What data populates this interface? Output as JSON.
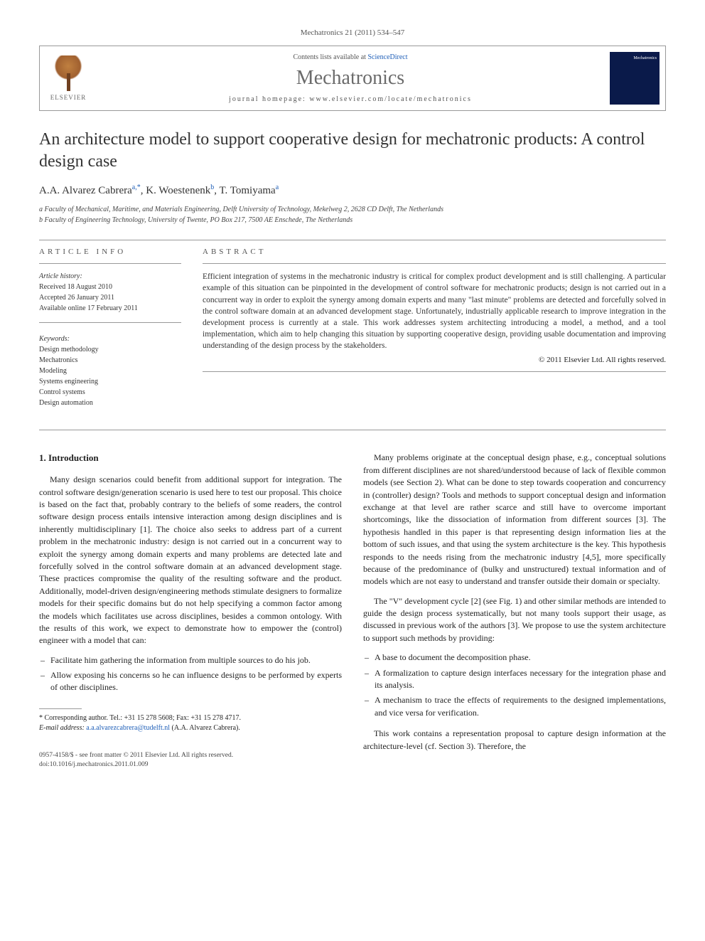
{
  "citation": "Mechatronics 21 (2011) 534–547",
  "header": {
    "contents_prefix": "Contents lists available at ",
    "contents_link": "ScienceDirect",
    "journal_name": "Mechatronics",
    "homepage_label": "journal homepage: www.elsevier.com/locate/mechatronics",
    "publisher_label": "ELSEVIER",
    "cover_text": "Mechatronics"
  },
  "title": "An architecture model to support cooperative design for mechatronic products: A control design case",
  "authors_html": "A.A. Alvarez Cabrera",
  "authors": [
    {
      "name": "A.A. Alvarez Cabrera",
      "marks": "a,*"
    },
    {
      "name": "K. Woestenenk",
      "marks": "b"
    },
    {
      "name": "T. Tomiyama",
      "marks": "a"
    }
  ],
  "affiliations": [
    "a Faculty of Mechanical, Maritime, and Materials Engineering, Delft University of Technology, Mekelweg 2, 2628 CD Delft, The Netherlands",
    "b Faculty of Engineering Technology, University of Twente, PO Box 217, 7500 AE Enschede, The Netherlands"
  ],
  "info_label": "ARTICLE INFO",
  "abstract_label": "ABSTRACT",
  "history": {
    "label": "Article history:",
    "received": "Received 18 August 2010",
    "accepted": "Accepted 26 January 2011",
    "online": "Available online 17 February 2011"
  },
  "keywords_label": "Keywords:",
  "keywords": [
    "Design methodology",
    "Mechatronics",
    "Modeling",
    "Systems engineering",
    "Control systems",
    "Design automation"
  ],
  "abstract": "Efficient integration of systems in the mechatronic industry is critical for complex product development and is still challenging. A particular example of this situation can be pinpointed in the development of control software for mechatronic products; design is not carried out in a concurrent way in order to exploit the synergy among domain experts and many \"last minute\" problems are detected and forcefully solved in the control software domain at an advanced development stage. Unfortunately, industrially applicable research to improve integration in the development process is currently at a stale. This work addresses system architecting introducing a model, a method, and a tool implementation, which aim to help changing this situation by supporting cooperative design, providing usable documentation and improving understanding of the design process by the stakeholders.",
  "copyright": "© 2011 Elsevier Ltd. All rights reserved.",
  "section1_title": "1. Introduction",
  "col1": {
    "p1": "Many design scenarios could benefit from additional support for integration. The control software design/generation scenario is used here to test our proposal. This choice is based on the fact that, probably contrary to the beliefs of some readers, the control software design process entails intensive interaction among design disciplines and is inherently multidisciplinary [1]. The choice also seeks to address part of a current problem in the mechatronic industry: design is not carried out in a concurrent way to exploit the synergy among domain experts and many problems are detected late and forcefully solved in the control software domain at an advanced development stage. These practices compromise the quality of the resulting software and the product. Additionally, model-driven design/engineering methods stimulate designers to formalize models for their specific domains but do not help specifying a common factor among the models which facilitates use across disciplines, besides a common ontology. With the results of this work, we expect to demonstrate how to empower the (control) engineer with a model that can:",
    "bullets": [
      "Facilitate him gathering the information from multiple sources to do his job.",
      "Allow exposing his concerns so he can influence designs to be performed by experts of other disciplines."
    ]
  },
  "col2": {
    "p1": "Many problems originate at the conceptual design phase, e.g., conceptual solutions from different disciplines are not shared/understood because of lack of flexible common models (see Section 2). What can be done to step towards cooperation and concurrency in (controller) design? Tools and methods to support conceptual design and information exchange at that level are rather scarce and still have to overcome important shortcomings, like the dissociation of information from different sources [3]. The hypothesis handled in this paper is that representing design information lies at the bottom of such issues, and that using the system architecture is the key. This hypothesis responds to the needs rising from the mechatronic industry [4,5], more specifically because of the predominance of (bulky and unstructured) textual information and of models which are not easy to understand and transfer outside their domain or specialty.",
    "p2": "The \"V\" development cycle [2] (see Fig. 1) and other similar methods are intended to guide the design process systematically, but not many tools support their usage, as discussed in previous work of the authors [3]. We propose to use the system architecture to support such methods by providing:",
    "bullets": [
      "A base to document the decomposition phase.",
      "A formalization to capture design interfaces necessary for the integration phase and its analysis.",
      "A mechanism to trace the effects of requirements to the designed implementations, and vice versa for verification."
    ],
    "p3": "This work contains a representation proposal to capture design information at the architecture-level (cf. Section 3). Therefore, the"
  },
  "footnote": {
    "corr": "* Corresponding author. Tel.: +31 15 278 5608; Fax: +31 15 278 4717.",
    "email_label": "E-mail address:",
    "email": "a.a.alvarezcabrera@tudelft.nl",
    "email_paren": "(A.A. Alvarez Cabrera)."
  },
  "bottom": {
    "issn": "0957-4158/$ - see front matter © 2011 Elsevier Ltd. All rights reserved.",
    "doi": "doi:10.1016/j.mechatronics.2011.01.009"
  },
  "colors": {
    "link": "#1f5fb8",
    "text": "#333333",
    "muted": "#555555",
    "rule": "#999999"
  }
}
